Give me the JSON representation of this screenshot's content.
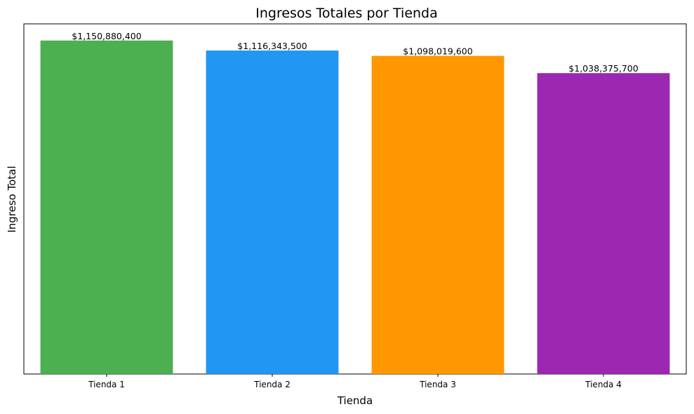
{
  "chart_data": {
    "type": "bar",
    "title": "Ingresos Totales por Tienda",
    "xlabel": "Tienda",
    "ylabel": "Ingreso Total",
    "categories": [
      "Tienda 1",
      "Tienda 2",
      "Tienda 3",
      "Tienda 4"
    ],
    "values": [
      1150880400,
      1116343500,
      1098019600,
      1038375700
    ],
    "value_labels": [
      "$1,150,880,400",
      "$1,116,343,500",
      "$1,098,019,600",
      "$1,038,375,700"
    ],
    "colors": [
      "#4caf50",
      "#2196f3",
      "#ff9800",
      "#9c27b0"
    ],
    "ylim": [
      0,
      1208424420
    ],
    "y_ticks_visible": false,
    "grid": false,
    "legend": "none"
  }
}
